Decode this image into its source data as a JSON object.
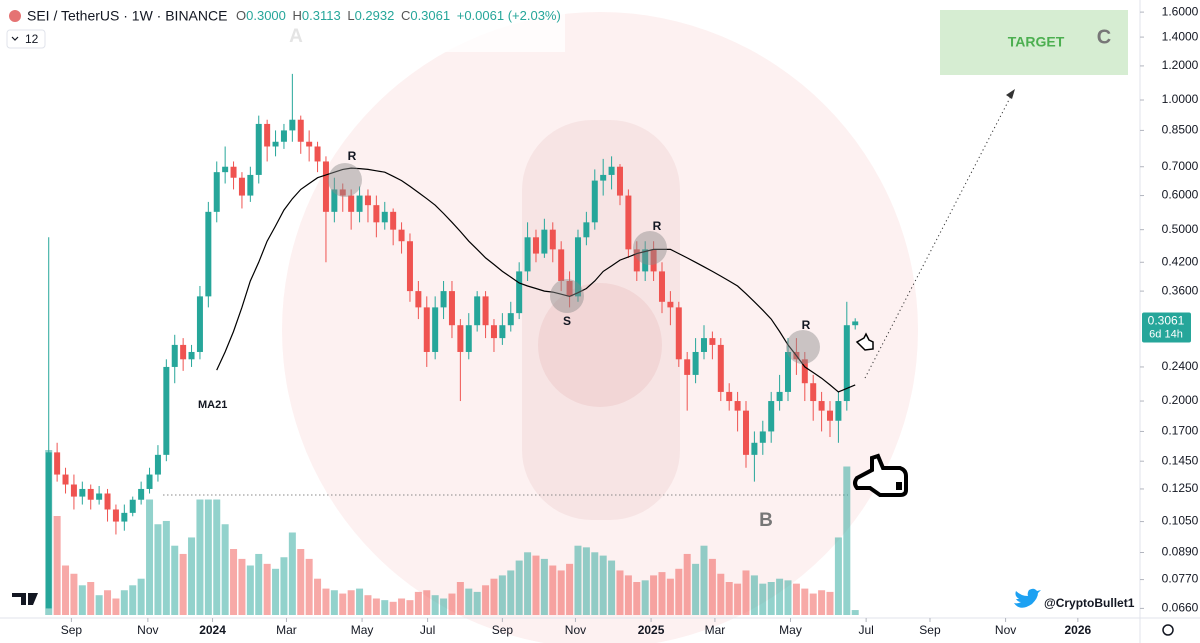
{
  "header": {
    "symbol": "SEI / TetherUS · 1W · BINANCE",
    "ohlc": [
      {
        "label": "O",
        "value": "0.3000"
      },
      {
        "label": "H",
        "value": "0.3113"
      },
      {
        "label": "L",
        "value": "0.2932"
      },
      {
        "label": "C",
        "value": "0.3061"
      }
    ],
    "change": "+0.0061 (+2.03%)",
    "indicator_count": "12"
  },
  "footer": {
    "handle": "@CryptoBullet1"
  },
  "chart_data": {
    "type": "candlestick",
    "log_scale": true,
    "grid": false,
    "up_color": "#26a69a",
    "down_color": "#ef5350",
    "open": [
      0.066,
      0.152,
      0.135,
      0.128,
      0.12,
      0.125,
      0.118,
      0.122,
      0.112,
      0.105,
      0.11,
      0.118,
      0.125,
      0.135,
      0.15,
      0.24,
      0.27,
      0.25,
      0.26,
      0.35,
      0.55,
      0.68,
      0.7,
      0.66,
      0.6,
      0.67,
      0.88,
      0.78,
      0.8,
      0.85,
      0.9,
      0.8,
      0.78,
      0.72,
      0.55,
      0.62,
      0.6,
      0.55,
      0.6,
      0.57,
      0.52,
      0.55,
      0.5,
      0.47,
      0.36,
      0.33,
      0.26,
      0.33,
      0.36,
      0.3,
      0.26,
      0.3,
      0.35,
      0.3,
      0.28,
      0.3,
      0.32,
      0.4,
      0.48,
      0.44,
      0.5,
      0.45,
      0.38,
      0.35,
      0.48,
      0.52,
      0.65,
      0.67,
      0.7,
      0.6,
      0.45,
      0.4,
      0.45,
      0.4,
      0.34,
      0.33,
      0.25,
      0.23,
      0.26,
      0.28,
      0.27,
      0.21,
      0.2,
      0.19,
      0.15,
      0.16,
      0.17,
      0.2,
      0.21,
      0.26,
      0.25,
      0.22,
      0.2,
      0.19,
      0.18,
      0.2,
      0.3
    ],
    "high": [
      0.48,
      0.16,
      0.14,
      0.135,
      0.13,
      0.128,
      0.127,
      0.125,
      0.115,
      0.115,
      0.12,
      0.13,
      0.14,
      0.158,
      0.25,
      0.285,
      0.28,
      0.27,
      0.37,
      0.58,
      0.72,
      0.78,
      0.72,
      0.68,
      0.7,
      0.92,
      0.9,
      0.85,
      0.88,
      1.15,
      0.92,
      0.85,
      0.8,
      0.74,
      0.66,
      0.64,
      0.62,
      0.63,
      0.62,
      0.6,
      0.58,
      0.56,
      0.52,
      0.49,
      0.38,
      0.35,
      0.35,
      0.38,
      0.38,
      0.31,
      0.32,
      0.36,
      0.36,
      0.31,
      0.32,
      0.34,
      0.42,
      0.52,
      0.5,
      0.53,
      0.52,
      0.47,
      0.4,
      0.5,
      0.55,
      0.69,
      0.73,
      0.74,
      0.71,
      0.62,
      0.47,
      0.47,
      0.47,
      0.42,
      0.36,
      0.34,
      0.26,
      0.28,
      0.3,
      0.29,
      0.28,
      0.22,
      0.21,
      0.2,
      0.17,
      0.18,
      0.21,
      0.23,
      0.28,
      0.28,
      0.26,
      0.23,
      0.21,
      0.2,
      0.21,
      0.34,
      0.3113
    ],
    "low": [
      0.066,
      0.13,
      0.122,
      0.112,
      0.115,
      0.112,
      0.115,
      0.105,
      0.098,
      0.1,
      0.108,
      0.115,
      0.122,
      0.13,
      0.145,
      0.22,
      0.235,
      0.24,
      0.25,
      0.33,
      0.52,
      0.64,
      0.62,
      0.56,
      0.58,
      0.64,
      0.72,
      0.74,
      0.77,
      0.8,
      0.75,
      0.72,
      0.68,
      0.42,
      0.52,
      0.55,
      0.5,
      0.52,
      0.52,
      0.48,
      0.5,
      0.46,
      0.44,
      0.34,
      0.31,
      0.24,
      0.25,
      0.31,
      0.28,
      0.2,
      0.25,
      0.29,
      0.28,
      0.26,
      0.27,
      0.29,
      0.31,
      0.38,
      0.42,
      0.43,
      0.42,
      0.36,
      0.33,
      0.34,
      0.46,
      0.5,
      0.6,
      0.62,
      0.57,
      0.43,
      0.38,
      0.38,
      0.38,
      0.32,
      0.3,
      0.24,
      0.19,
      0.22,
      0.25,
      0.25,
      0.2,
      0.19,
      0.17,
      0.14,
      0.13,
      0.15,
      0.16,
      0.19,
      0.2,
      0.23,
      0.2,
      0.18,
      0.17,
      0.165,
      0.16,
      0.19,
      0.2932
    ],
    "close": [
      0.152,
      0.135,
      0.128,
      0.12,
      0.125,
      0.118,
      0.122,
      0.112,
      0.105,
      0.11,
      0.118,
      0.125,
      0.135,
      0.15,
      0.24,
      0.27,
      0.25,
      0.26,
      0.35,
      0.55,
      0.68,
      0.7,
      0.66,
      0.6,
      0.67,
      0.88,
      0.78,
      0.8,
      0.85,
      0.9,
      0.8,
      0.78,
      0.72,
      0.55,
      0.62,
      0.6,
      0.55,
      0.6,
      0.57,
      0.52,
      0.55,
      0.5,
      0.47,
      0.36,
      0.33,
      0.26,
      0.33,
      0.36,
      0.3,
      0.26,
      0.3,
      0.35,
      0.3,
      0.28,
      0.3,
      0.32,
      0.4,
      0.48,
      0.44,
      0.5,
      0.45,
      0.38,
      0.35,
      0.48,
      0.52,
      0.65,
      0.67,
      0.7,
      0.6,
      0.45,
      0.4,
      0.45,
      0.4,
      0.34,
      0.33,
      0.25,
      0.23,
      0.26,
      0.28,
      0.27,
      0.21,
      0.2,
      0.19,
      0.15,
      0.16,
      0.17,
      0.2,
      0.21,
      0.26,
      0.25,
      0.22,
      0.2,
      0.19,
      0.18,
      0.2,
      0.3,
      0.3061
    ],
    "volume": [
      100,
      60,
      30,
      25,
      18,
      20,
      12,
      15,
      10,
      15,
      18,
      22,
      70,
      55,
      57,
      42,
      37,
      47,
      70,
      70,
      70,
      55,
      40,
      34,
      30,
      37,
      31,
      28,
      35,
      50,
      40,
      34,
      22,
      16,
      15,
      13,
      15,
      16,
      12,
      10,
      9,
      8,
      10,
      9,
      14,
      15,
      12,
      10,
      13,
      20,
      16,
      14,
      18,
      22,
      24,
      27,
      33,
      38,
      36,
      34,
      30,
      27,
      31,
      42,
      41,
      38,
      36,
      33,
      27,
      24,
      20,
      21,
      24,
      26,
      22,
      28,
      37,
      31,
      42,
      34,
      25,
      20,
      19,
      27,
      24,
      19,
      20,
      22,
      21,
      19,
      16,
      13,
      15,
      14,
      47,
      90,
      3
    ],
    "vlim": [
      0,
      100
    ],
    "overlays": [
      {
        "name": "MA21",
        "color": "#000000",
        "values": [
          null,
          null,
          null,
          null,
          null,
          null,
          null,
          null,
          null,
          null,
          null,
          null,
          null,
          null,
          null,
          null,
          null,
          null,
          null,
          null,
          0.236,
          0.26,
          0.29,
          0.33,
          0.38,
          0.42,
          0.47,
          0.51,
          0.555,
          0.59,
          0.62,
          0.64,
          0.66,
          0.67,
          0.68,
          0.69,
          0.695,
          0.693,
          0.69,
          0.685,
          0.68,
          0.665,
          0.65,
          0.63,
          0.61,
          0.59,
          0.57,
          0.545,
          0.52,
          0.495,
          0.47,
          0.45,
          0.43,
          0.415,
          0.4,
          0.388,
          0.376,
          0.37,
          0.365,
          0.36,
          0.358,
          0.354,
          0.35,
          0.357,
          0.365,
          0.38,
          0.4,
          0.412,
          0.425,
          0.432,
          0.44,
          0.445,
          0.45,
          0.45,
          0.45,
          0.44,
          0.43,
          0.42,
          0.41,
          0.4,
          0.39,
          0.38,
          0.37,
          0.355,
          0.34,
          0.325,
          0.31,
          0.29,
          0.27,
          0.255,
          0.24,
          0.233,
          0.226,
          0.218,
          0.21,
          0.214,
          0.218
        ]
      }
    ],
    "ylim": [
      0.0627,
      1.707
    ],
    "yticks": [
      {
        "value": 1.6,
        "label": "1.6000"
      },
      {
        "value": 1.4,
        "label": "1.4000"
      },
      {
        "value": 1.2,
        "label": "1.2000"
      },
      {
        "value": 1.0,
        "label": "1.0000"
      },
      {
        "value": 0.85,
        "label": "0.8500"
      },
      {
        "value": 0.7,
        "label": "0.7000"
      },
      {
        "value": 0.6,
        "label": "0.6000"
      },
      {
        "value": 0.5,
        "label": "0.5000"
      },
      {
        "value": 0.42,
        "label": "0.4200"
      },
      {
        "value": 0.36,
        "label": "0.3600"
      },
      {
        "value": 0.24,
        "label": "0.2400"
      },
      {
        "value": 0.2,
        "label": "0.2000"
      },
      {
        "value": 0.17,
        "label": "0.1700"
      },
      {
        "value": 0.145,
        "label": "0.1450"
      },
      {
        "value": 0.125,
        "label": "0.1250"
      },
      {
        "value": 0.105,
        "label": "0.1050"
      },
      {
        "value": 0.089,
        "label": "0.0890"
      },
      {
        "value": 0.077,
        "label": "0.0770"
      },
      {
        "value": 0.066,
        "label": "0.0660"
      }
    ],
    "xlim": [
      -5.8,
      129.9
    ],
    "xticks": [
      {
        "value": 2.7,
        "label": "Sep"
      },
      {
        "value": 11.8,
        "label": "Nov"
      },
      {
        "value": 19.5,
        "label": "2024"
      },
      {
        "value": 28.3,
        "label": "Mar"
      },
      {
        "value": 37.3,
        "label": "May"
      },
      {
        "value": 45.1,
        "label": "Jul"
      },
      {
        "value": 54.0,
        "label": "Sep"
      },
      {
        "value": 62.7,
        "label": "Nov"
      },
      {
        "value": 71.7,
        "label": "2025"
      },
      {
        "value": 79.3,
        "label": "Mar"
      },
      {
        "value": 88.3,
        "label": "May"
      },
      {
        "value": 97.3,
        "label": "Jul"
      },
      {
        "value": 104.9,
        "label": "Sep"
      },
      {
        "value": 113.9,
        "label": "Nov"
      },
      {
        "value": 122.5,
        "label": "2026"
      }
    ],
    "last_price": {
      "label": "0.3061",
      "countdown": "6d 14h"
    },
    "annotations": [
      "A",
      "B",
      "C",
      "TARGET",
      "R",
      "R",
      "R",
      "S"
    ]
  }
}
